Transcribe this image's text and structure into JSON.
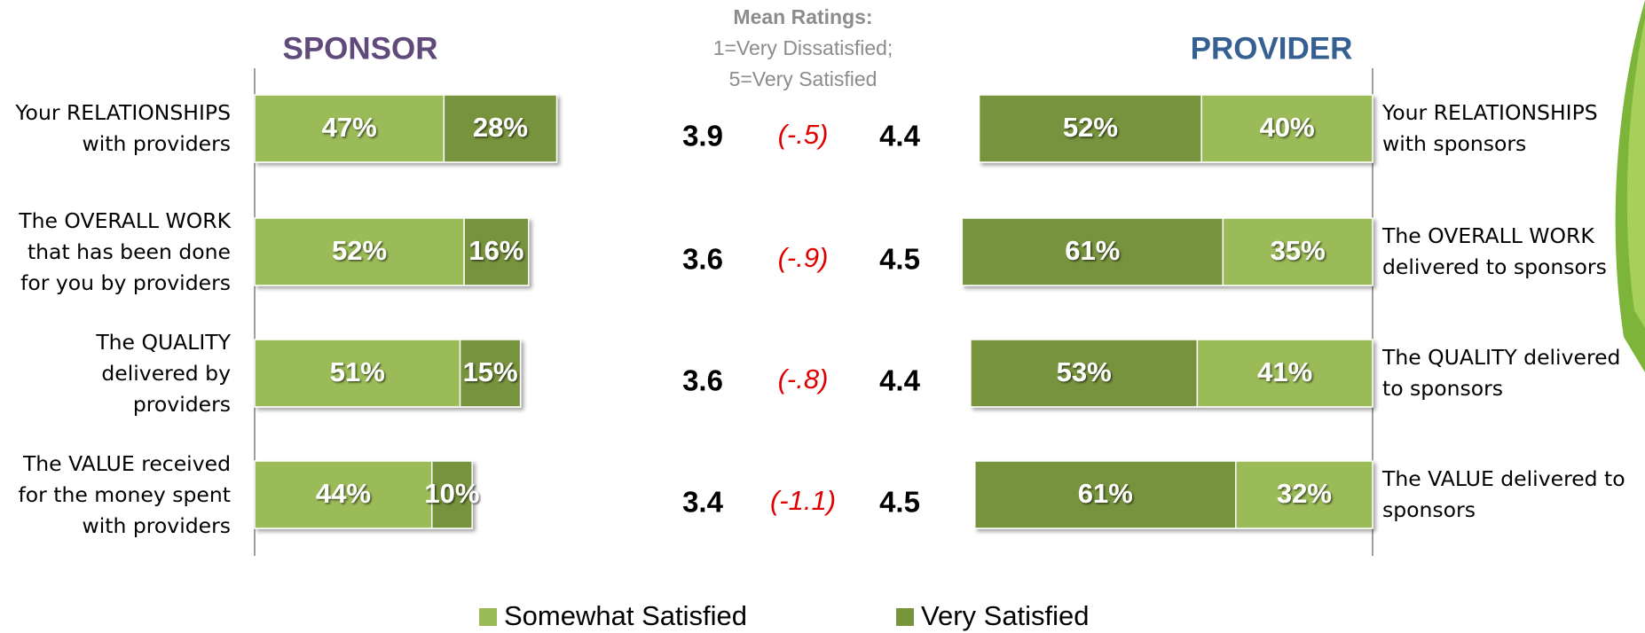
{
  "chart_data": [
    {
      "type": "bar",
      "orientation": "horizontal",
      "stacked": true,
      "anchor": "left",
      "title": "SPONSOR",
      "title_color": "#604a7b",
      "categories": [
        "Your RELATIONSHIPS\nwith providers",
        "The OVERALL WORK\nthat has been done\nfor you by providers",
        "The QUALITY\ndelivered by\nproviders",
        "The VALUE received\nfor the money spent\nwith providers"
      ],
      "series": [
        {
          "name": "Somewhat Satisfied",
          "color": "#9bbb59",
          "values": [
            47,
            52,
            51,
            44
          ],
          "value_labels": [
            "47%",
            "52%",
            "51%",
            "44%"
          ]
        },
        {
          "name": "Very Satisfied",
          "color": "#77933c",
          "values": [
            28,
            16,
            15,
            10
          ],
          "value_labels": [
            "28%",
            "16%",
            "15%",
            "10%"
          ]
        }
      ]
    },
    {
      "type": "bar",
      "orientation": "horizontal",
      "stacked": true,
      "anchor": "right",
      "title": "PROVIDER",
      "title_color": "#376092",
      "categories": [
        "Your RELATIONSHIPS\nwith sponsors",
        "The OVERALL WORK\ndelivered to sponsors",
        "The QUALITY delivered\nto sponsors",
        "The VALUE delivered to\nsponsors"
      ],
      "series": [
        {
          "name": "Very Satisfied",
          "color": "#77933c",
          "values": [
            52,
            61,
            53,
            61
          ],
          "value_labels": [
            "52%",
            "61%",
            "53%",
            "61%"
          ]
        },
        {
          "name": "Somewhat Satisfied",
          "color": "#9bbb59",
          "values": [
            40,
            35,
            41,
            32
          ],
          "value_labels": [
            "40%",
            "35%",
            "41%",
            "32%"
          ]
        }
      ]
    }
  ],
  "mean_ratings": {
    "title": "Mean Ratings:",
    "scale_low": "1=Very Dissatisfied;",
    "scale_high": "5=Very Satisfied",
    "sponsor": [
      3.9,
      3.6,
      3.6,
      3.4
    ],
    "differences": [
      "(-.5)",
      "(-.9)",
      "(-.8)",
      "(-1.1)"
    ],
    "provider": [
      4.4,
      4.5,
      4.4,
      4.5
    ]
  }
}
